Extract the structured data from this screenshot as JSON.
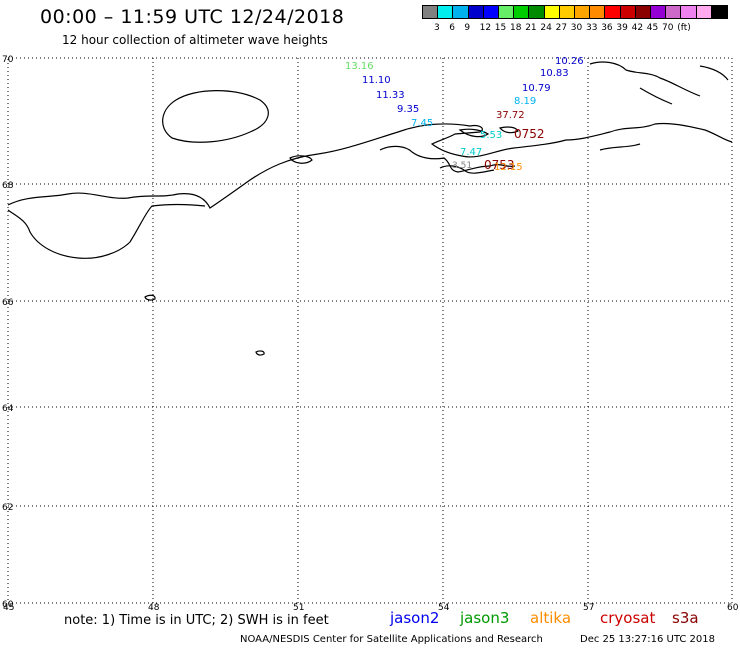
{
  "header": {
    "title": "00:00 – 11:59 UTC 12/24/2018",
    "subtitle": "12 hour collection of altimeter wave heights"
  },
  "color_scale": {
    "swatches": [
      "#808080",
      "#00eeee",
      "#00b2ee",
      "#0000cd",
      "#0000ff",
      "#66ee66",
      "#00cd00",
      "#008b00",
      "#ffff00",
      "#ffcc00",
      "#ffa500",
      "#ff8c00",
      "#ff0000",
      "#cd0000",
      "#8b0000",
      "#9400d3",
      "#cd69c9",
      "#ee82ee",
      "#ffaaee",
      "#000000"
    ],
    "labels": [
      "3",
      "6",
      "9",
      "12",
      "15",
      "18",
      "21",
      "24",
      "27",
      "30",
      "33",
      "36",
      "39",
      "42",
      "45",
      "70"
    ],
    "unit": "(ft)"
  },
  "axes": {
    "lat_labels": [
      "70",
      "68",
      "66",
      "64",
      "62",
      "60"
    ],
    "lon_labels": [
      "45",
      "48",
      "51",
      "54",
      "57",
      "60"
    ]
  },
  "observations": [
    {
      "value": "13.16",
      "color": "#66dd66"
    },
    {
      "value": "11.10",
      "color": "#0000cd"
    },
    {
      "value": "11.33",
      "color": "#0000cd"
    },
    {
      "value": "9.35",
      "color": "#0000cd"
    },
    {
      "value": "7.45",
      "color": "#00b2ee"
    },
    {
      "value": "10.26",
      "color": "#0000cd"
    },
    {
      "value": "10.83",
      "color": "#0000cd"
    },
    {
      "value": "10.79",
      "color": "#0000cd"
    },
    {
      "value": "8.19",
      "color": "#00b2ee"
    },
    {
      "value": "37.72",
      "color": "#8b0000"
    },
    {
      "value": "5.53",
      "color": "#00cccc"
    },
    {
      "value": "7.47",
      "color": "#00cccc"
    },
    {
      "value": "0752",
      "color": "#8b0000"
    },
    {
      "value": "0753",
      "color": "#8b0000"
    },
    {
      "value": "12.15",
      "color": "#ff8c00"
    },
    {
      "value": "3.51",
      "color": "#808080"
    }
  ],
  "footer": {
    "note": "note:  1) Time is in UTC;  2) SWH is in feet",
    "satellites": [
      {
        "name": "jason2",
        "color": "#0000ee"
      },
      {
        "name": "jason3",
        "color": "#009900"
      },
      {
        "name": "altika",
        "color": "#ff8c00"
      },
      {
        "name": "cryosat",
        "color": "#cc0000"
      },
      {
        "name": "s3a",
        "color": "#8b0000"
      }
    ],
    "credit": "NOAA/NESDIS Center for Satellite Applications and Research",
    "timestamp": "Dec 25 13:27:16 UTC 2018"
  }
}
